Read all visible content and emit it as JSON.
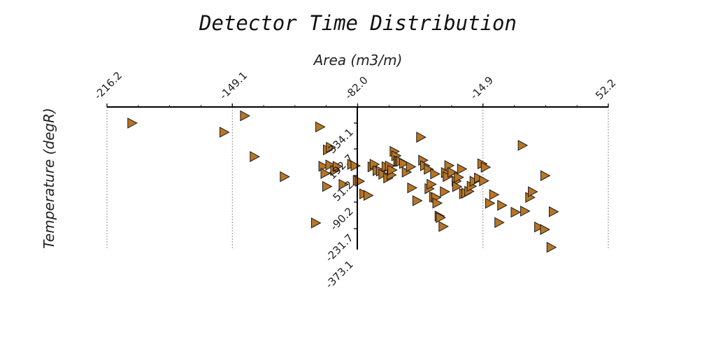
{
  "chart_data": {
    "type": "scatter",
    "title": "Detector Time Distribution",
    "xlabel": "Area (m3/m)",
    "ylabel": "Temperature (degR)",
    "xlim": [
      -216.2,
      52.2
    ],
    "ylim": [
      -373.1,
      404.8
    ],
    "xticks": [
      "-216.2",
      "-149.1",
      "-82.0",
      "-14.9",
      "52.2"
    ],
    "yticks": [
      "334.1",
      "192.7",
      "51.2",
      "-90.2",
      "-231.7",
      "-373.1"
    ],
    "grid": true,
    "marker": "triangle-right",
    "marker_color": "#b87525",
    "series": [
      {
        "x": [
          -142.5,
          -202.8,
          -153.5,
          -137.3,
          -121.2,
          -104.5,
          -102.2,
          -100.5,
          -98.5,
          -98.1,
          -96.8,
          -99.4,
          -96.5,
          -94.2,
          -92.9,
          -89.7,
          -85.1,
          -83.3,
          -82.1,
          -81.0,
          -78.6,
          -76.4,
          -74.2,
          -73.1,
          -71.5,
          -69.7,
          -68.4,
          -66.7,
          -65.8,
          -64.9,
          -64.0,
          -63.6,
          -62.4,
          -61.5,
          -60.4,
          -59.7,
          -59.0,
          -57.3,
          -55.9,
          -53.6,
          -53.0,
          -50.2,
          -48.2,
          -47.1,
          -46.1,
          -44.1,
          -43.7,
          -42.6,
          -41.2,
          -40.7,
          -40.1,
          -39.5,
          -38.3,
          -37.7,
          -36.2,
          -35.5,
          -34.9,
          -34.0,
          -33.1,
          -31.4,
          -29.2,
          -28.9,
          -28.0,
          -26.3,
          -25.2,
          -24.0,
          -22.4,
          -21.1,
          -19.6,
          -17.2,
          -15.4,
          -14.5,
          -13.6,
          -11.3,
          -9.1,
          -6.3,
          -4.8,
          2.4,
          6.2,
          7.5,
          10.2,
          11.6,
          15.0,
          18.1,
          18.3,
          22.8,
          21.6
        ],
        "y": [
          395.0,
          355.9,
          306.8,
          175.6,
          67.7,
          -180.9,
          335.1,
          123.7,
          15.2,
          212.0,
          130.4,
          85.4,
          225.8,
          101.3,
          123.3,
          26.2,
          134.3,
          126.4,
          47.6,
          43.0,
          -24.7,
          -32.8,
          120.5,
          134.4,
          100.2,
          98.0,
          81.1,
          121.3,
          60.8,
          125.2,
          76.9,
          103.5,
          203.7,
          180.1,
          153.0,
          149.9,
          150.4,
          138.7,
          92.2,
          121.3,
          7.7,
          -61.4,
          279.9,
          156.3,
          126.7,
          107.6,
          3.2,
          26.8,
          -41.5,
          82.7,
          -44.0,
          -74.2,
          -143.7,
          -152.1,
          -199.8,
          -13.0,
          90.0,
          68.2,
          127.5,
          90.7,
          43.8,
          14.1,
          64.6,
          109.3,
          -23.7,
          -20.7,
          -10.8,
          16.1,
          43.1,
          60.9,
          137.1,
          45.5,
          118.5,
          -75.0,
          -29.0,
          -178.7,
          -86.0,
          -123.3,
          236.1,
          -117.3,
          -43.6,
          -13.1,
          -202.9,
          -216.2,
          73.3,
          -120.4,
          -311.8
        ]
      }
    ]
  }
}
